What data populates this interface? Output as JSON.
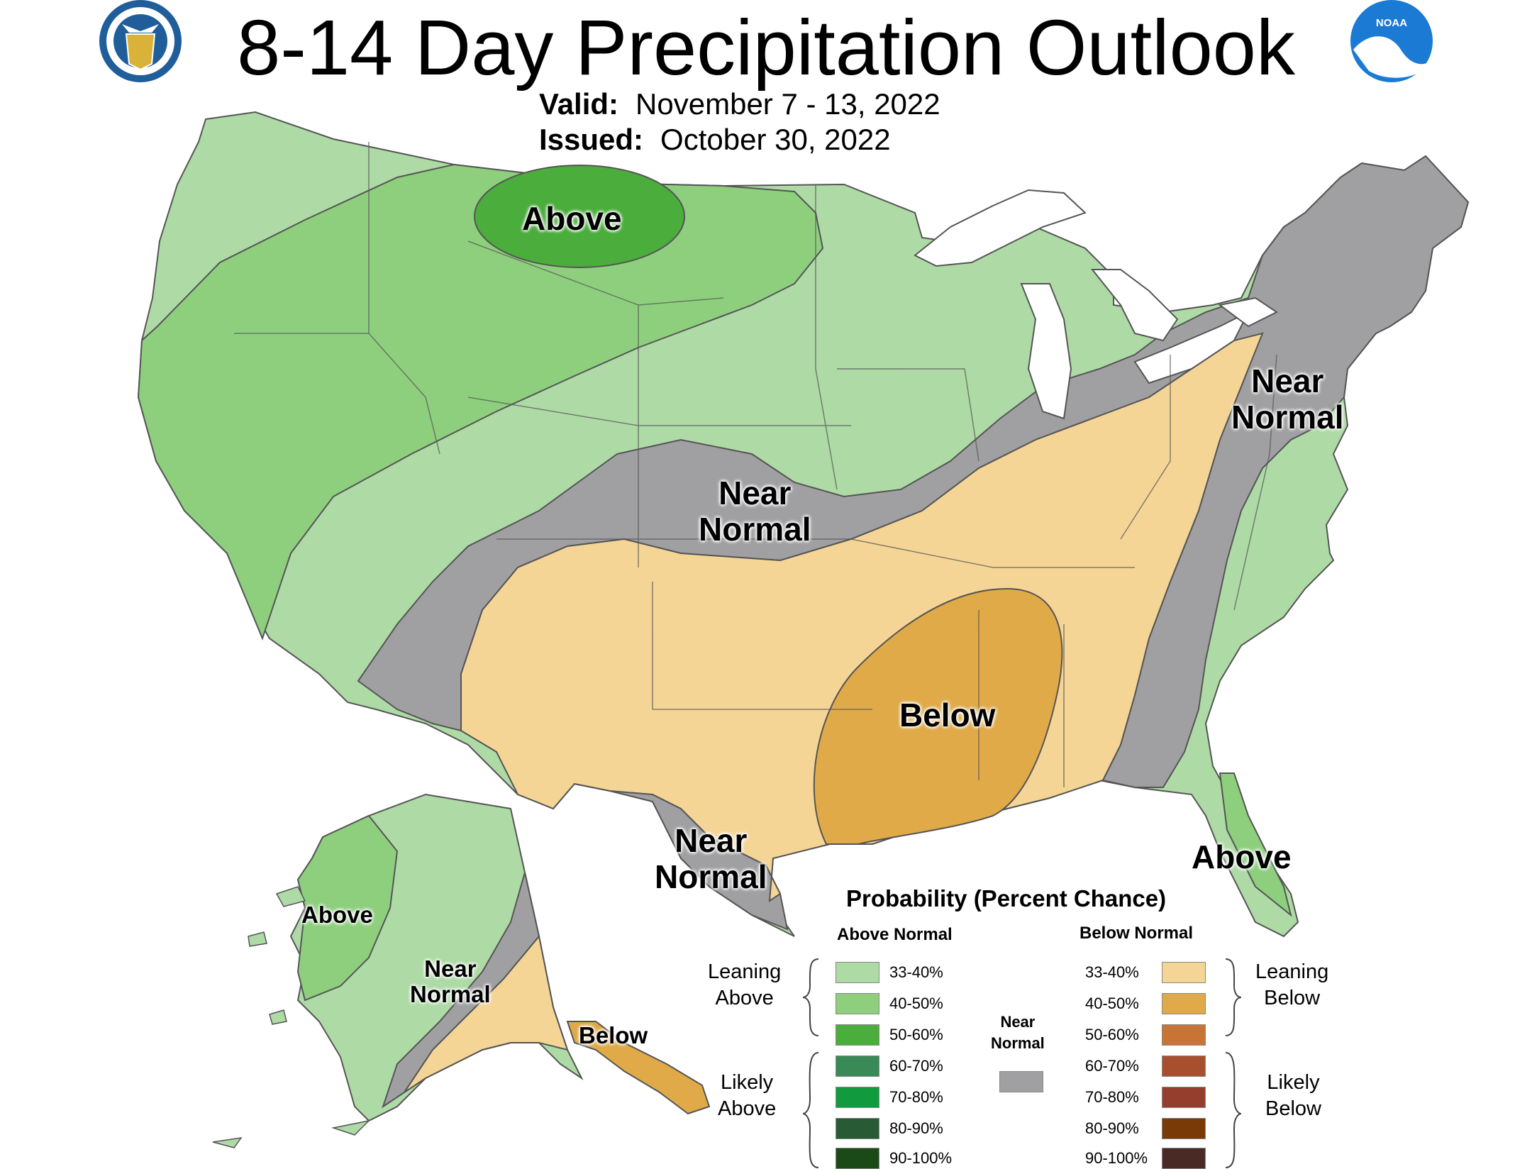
{
  "header": {
    "title": "8-14 Day Precipitation Outlook",
    "valid_label": "Valid:",
    "valid_value": "November 7 - 13, 2022",
    "issued_label": "Issued:",
    "issued_value": "October 30, 2022",
    "noaa_logo_text": "NOAA"
  },
  "colors": {
    "leaning_above": "#aedaa6",
    "above_40_50": "#8ecf7e",
    "above_50_60": "#4aad3c",
    "above_60_70": "#3a8a58",
    "above_70_80": "#129a3e",
    "above_80_90": "#285a36",
    "above_90_100": "#1a4a18",
    "near_normal": "#a0a0a2",
    "leaning_below": "#f5d596",
    "below_40_50": "#e0aa48",
    "below_50_60": "#c87434",
    "below_60_70": "#a8502e",
    "below_70_80": "#963e2e",
    "below_80_90": "#7a3a08",
    "below_90_100": "#4a2a24",
    "lakes": "#ffffff",
    "borders": "#555555"
  },
  "map_labels": {
    "above_north": "Above",
    "near_normal_central_1": "Near",
    "near_normal_central_2": "Normal",
    "near_normal_east_1": "Near",
    "near_normal_east_2": "Normal",
    "below_south": "Below",
    "near_normal_tx_1": "Near",
    "near_normal_tx_2": "Normal",
    "above_fl": "Above",
    "ak_above": "Above",
    "ak_near_1": "Near",
    "ak_near_2": "Normal",
    "ak_below": "Below"
  },
  "legend": {
    "title": "Probability (Percent Chance)",
    "above_heading": "Above Normal",
    "below_heading": "Below Normal",
    "near_normal_1": "Near",
    "near_normal_2": "Normal",
    "leaning_above_1": "Leaning",
    "leaning_above_2": "Above",
    "likely_above_1": "Likely",
    "likely_above_2": "Above",
    "leaning_below_1": "Leaning",
    "leaning_below_2": "Below",
    "likely_below_1": "Likely",
    "likely_below_2": "Below",
    "above_bins": [
      "33-40%",
      "40-50%",
      "50-60%",
      "60-70%",
      "70-80%",
      "80-90%",
      "90-100%"
    ],
    "below_bins": [
      "33-40%",
      "40-50%",
      "50-60%",
      "60-70%",
      "70-80%",
      "80-90%",
      "90-100%"
    ]
  }
}
